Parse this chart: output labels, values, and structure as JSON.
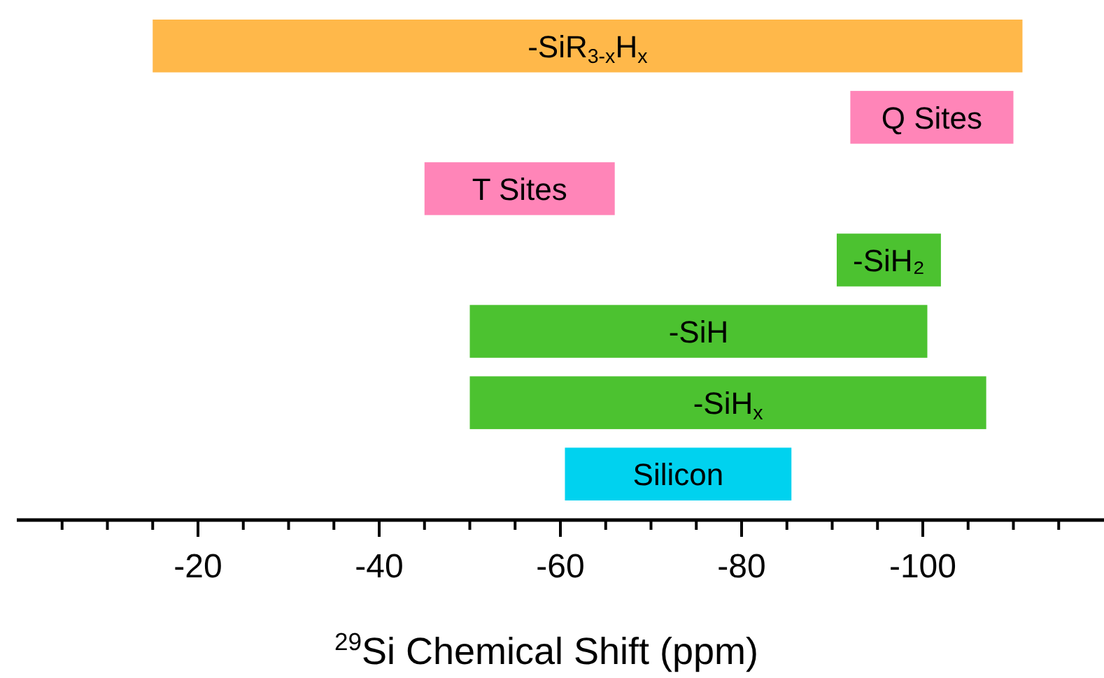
{
  "chart_data": {
    "type": "bar",
    "orientation": "horizontal",
    "categories": [
      "-SiR$_{3-x}$H$_{x}$",
      "Q Sites",
      "T Sites",
      "-SiH₂",
      "-SiH",
      "-SiH$_{x}$",
      "Silicon"
    ],
    "base": [
      -15,
      -92,
      -45,
      -90.5,
      -50,
      -50,
      -60.5
    ],
    "values": [
      -96,
      -18,
      -21,
      -11.5,
      -50.5,
      -57,
      -25
    ],
    "colors": [
      "#ffb84a",
      "#ff85b8",
      "#ff85b8",
      "#4cc230",
      "#4cc230",
      "#4cc230",
      "#00d2ef"
    ],
    "xlabel": "$^{29}$Si Chemical Shift (ppm)",
    "xlim": [
      0,
      -120
    ],
    "xticks": [
      {
        "value": -5,
        "label": null
      },
      {
        "value": -10,
        "label": null
      },
      {
        "value": -15,
        "label": null
      },
      -20,
      {
        "value": -25,
        "label": null
      },
      {
        "value": -30,
        "label": null
      },
      {
        "value": -35,
        "label": null
      },
      -40,
      {
        "value": -45,
        "label": null
      },
      {
        "value": -50,
        "label": null
      },
      {
        "value": -55,
        "label": null
      },
      -60,
      {
        "value": -65,
        "label": null
      },
      {
        "value": -70,
        "label": null
      },
      {
        "value": -75,
        "label": null
      },
      -80,
      {
        "value": -85,
        "label": null
      },
      {
        "value": -90,
        "label": null
      },
      {
        "value": -95,
        "label": null
      },
      -100,
      {
        "value": -105,
        "label": null
      },
      {
        "value": -110,
        "label": null
      },
      {
        "value": -115,
        "label": null
      }
    ],
    "grid": false
  }
}
